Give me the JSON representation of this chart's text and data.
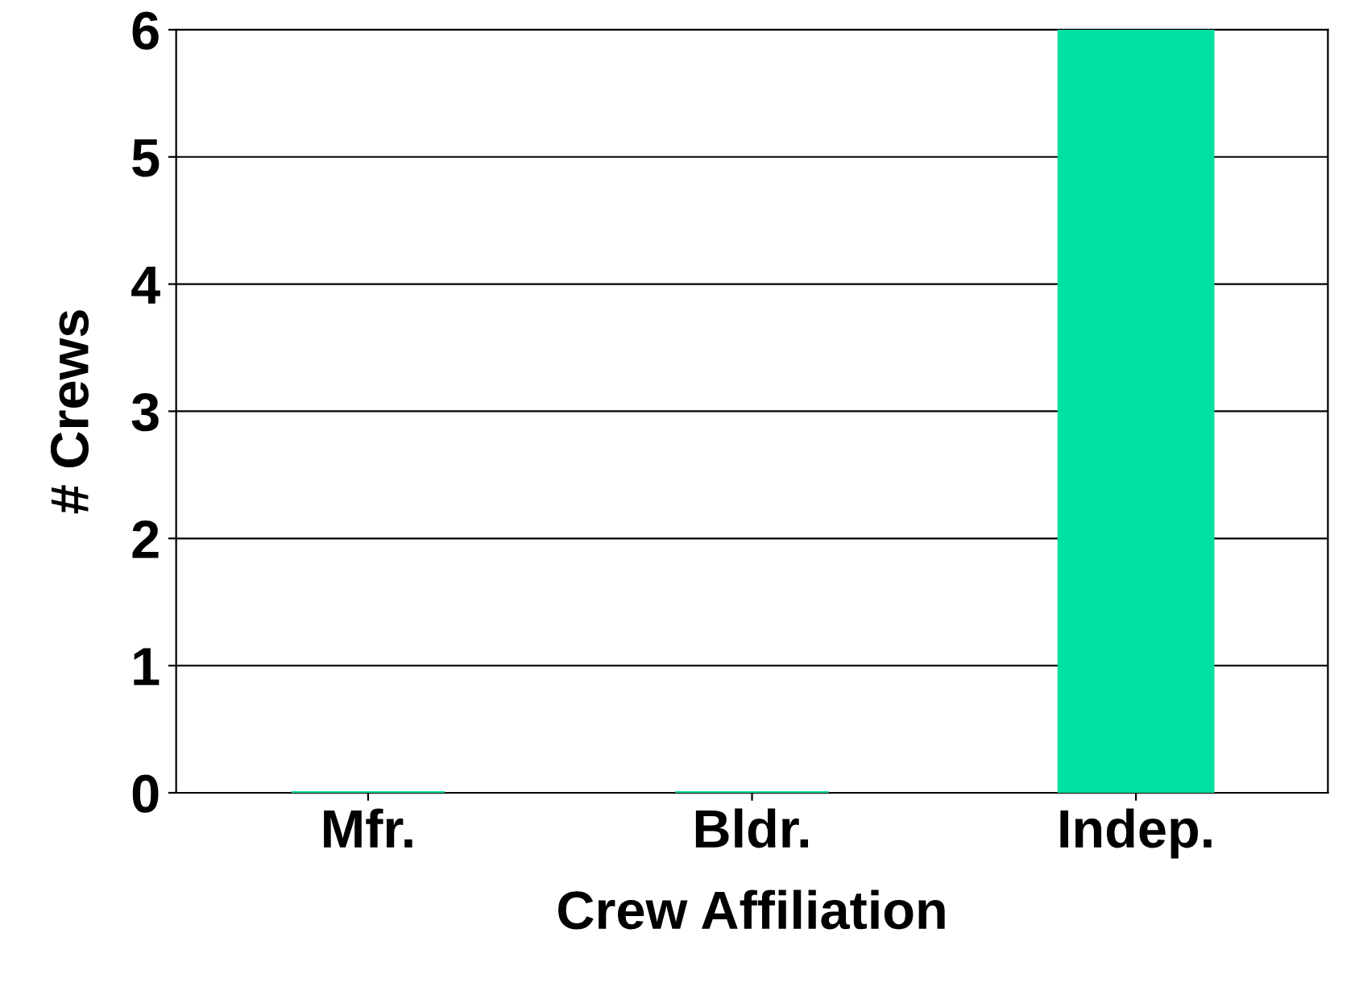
{
  "chart_data": {
    "type": "bar",
    "xlabel": "Crew Affiliation",
    "ylabel": "# Crews",
    "categories": [
      "Mfr.",
      "Bldr.",
      "Indep."
    ],
    "values": [
      0,
      0,
      6
    ],
    "color": "#00e0a0",
    "ylim": [
      0,
      6
    ],
    "yticks": [
      0,
      1,
      2,
      3,
      4,
      5,
      6
    ],
    "grid": "y"
  }
}
